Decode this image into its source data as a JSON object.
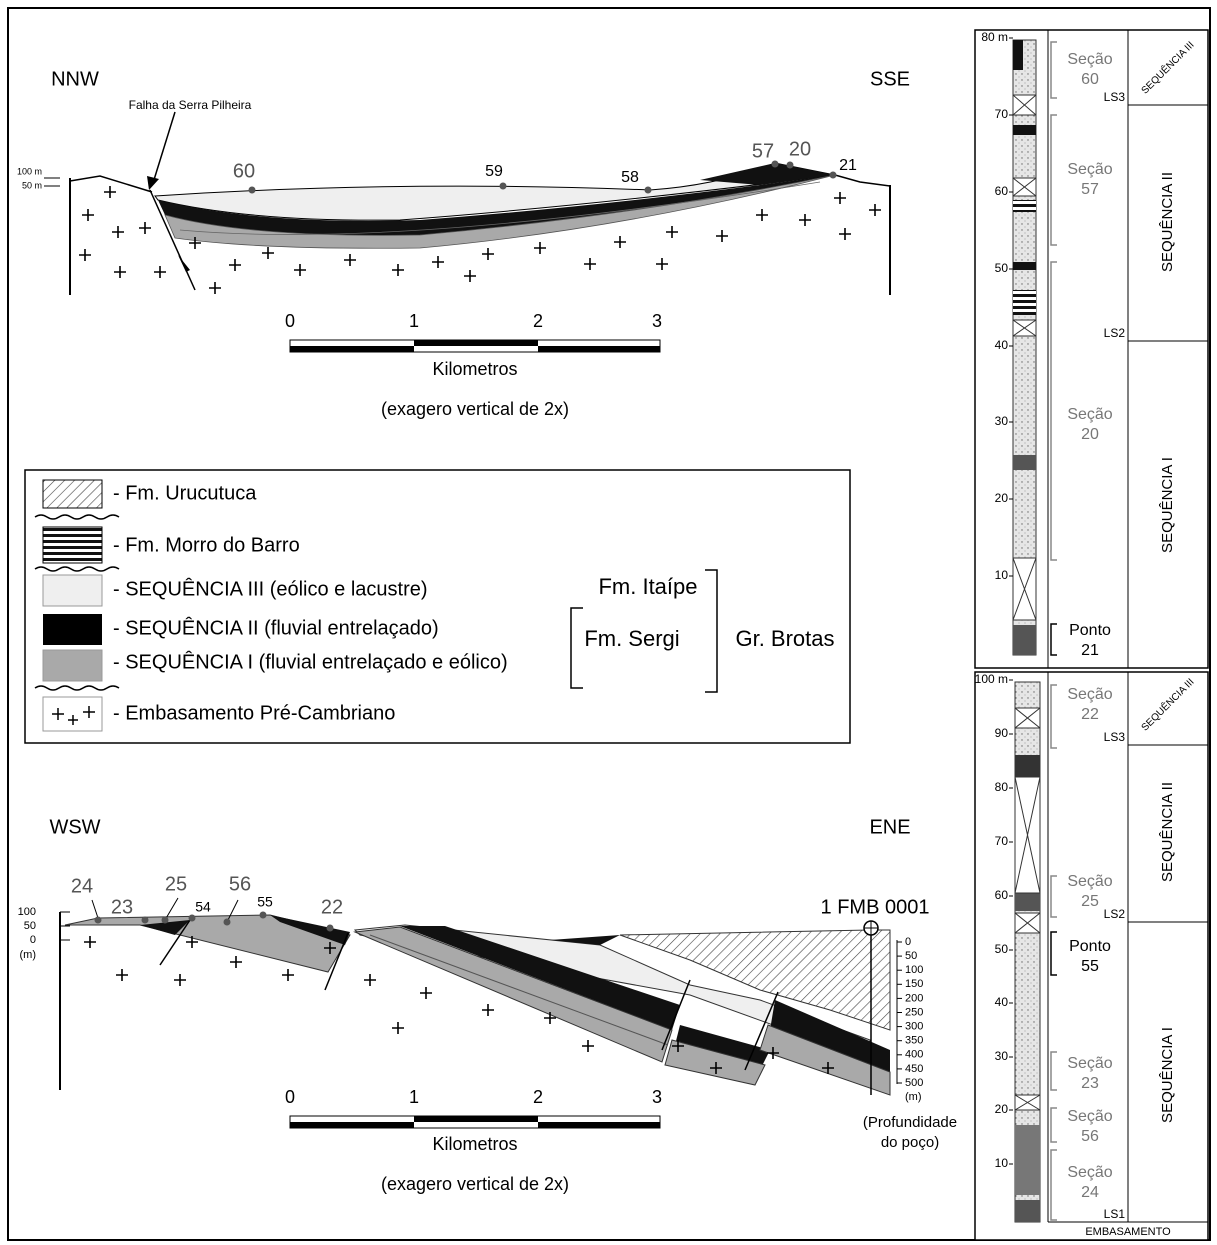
{
  "top_section": {
    "left_label": "NNW",
    "right_label": "SSE",
    "fault_label": "Falha da Serra Pilheira",
    "elevation_labels": [
      "100 m",
      "50 m"
    ],
    "points": [
      "60",
      "59",
      "58",
      "57",
      "20",
      "21"
    ],
    "scale_ticks": [
      "0",
      "1",
      "2",
      "3"
    ],
    "scale_unit": "Kilometros",
    "scale_note": "(exagero vertical de 2x)"
  },
  "legend": {
    "items": [
      "- Fm. Urucutuca",
      "- Fm. Morro do Barro",
      "- SEQUÊNCIA III (eólico e lacustre)",
      "- SEQUÊNCIA II (fluvial entrelaçado)",
      "- SEQUÊNCIA I (fluvial entrelaçado e eólico)",
      "- Embasamento Pré-Cambriano"
    ],
    "groups": [
      "Fm. Itaípe",
      "Fm. Sergi",
      "Gr. Brotas"
    ]
  },
  "bottom_section": {
    "left_label": "WSW",
    "right_label": "ENE",
    "elevation_labels": [
      "100",
      "50",
      "0",
      "(m)"
    ],
    "points": [
      "24",
      "23",
      "25",
      "54",
      "56",
      "55",
      "22"
    ],
    "well": "1 FMB 0001",
    "depth_labels": [
      "0",
      "50",
      "100",
      "150",
      "200",
      "250",
      "300",
      "350",
      "400",
      "450",
      "500",
      "(m)"
    ],
    "depth_caption": [
      "(Profundidade",
      "do poço)"
    ],
    "scale_ticks": [
      "0",
      "1",
      "2",
      "3"
    ],
    "scale_unit": "Kilometros",
    "scale_note": "(exagero vertical de 2x)"
  },
  "column_top": {
    "depth_labels": [
      "80 m",
      "70",
      "60",
      "50",
      "40",
      "30",
      "20",
      "10"
    ],
    "intervals": [
      {
        "kind": "Seção",
        "id": "60"
      },
      {
        "kind": "Seção",
        "id": "57"
      },
      {
        "kind": "Seção",
        "id": "20"
      },
      {
        "kind": "Ponto",
        "id": "21"
      }
    ],
    "boundaries": [
      "LS3",
      "LS2"
    ],
    "sequences": [
      "SEQUÊNCIA III",
      "SEQUÊNCIA II",
      "SEQUÊNCIA I"
    ]
  },
  "column_bottom": {
    "depth_labels": [
      "100 m",
      "90",
      "80",
      "70",
      "60",
      "50",
      "40",
      "30",
      "20",
      "10"
    ],
    "intervals": [
      {
        "kind": "Seção",
        "id": "22"
      },
      {
        "kind": "Seção",
        "id": "25"
      },
      {
        "kind": "Ponto",
        "id": "55"
      },
      {
        "kind": "Seção",
        "id": "23"
      },
      {
        "kind": "Seção",
        "id": "56"
      },
      {
        "kind": "Seção",
        "id": "24"
      }
    ],
    "boundaries": [
      "LS3",
      "LS2",
      "LS1"
    ],
    "sequences": [
      "SEQUÊNCIA III",
      "SEQUÊNCIA II",
      "SEQUÊNCIA I"
    ],
    "base": "EMBASAMENTO"
  }
}
